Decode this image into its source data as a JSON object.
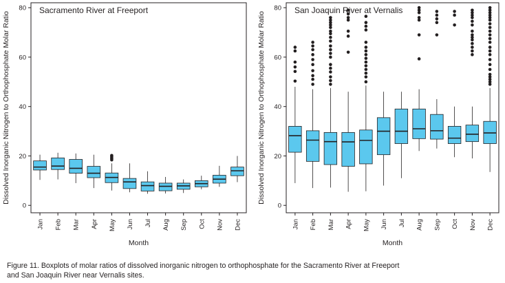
{
  "chart_data": [
    {
      "type": "boxplot",
      "title": "Sacramento River at Freeport",
      "xlabel": "Month",
      "ylabel": "Dissolved Inorganic Nitrogen to Orthophosphate Molar Ratio",
      "ylim": [
        -3,
        82
      ],
      "yticks": [
        "0",
        "20",
        "40",
        "60",
        "80"
      ],
      "grid": false,
      "box_color": "#5bc8ee",
      "categories": [
        "Jan",
        "Feb",
        "Mar",
        "Apr",
        "May",
        "Jun",
        "Jul",
        "Aug",
        "Sep",
        "Oct",
        "Nov",
        "Dec"
      ],
      "boxes": [
        {
          "low": 10.3,
          "q1": 14.3,
          "median": 15.5,
          "q3": 18.0,
          "high": 20.5,
          "outliers": []
        },
        {
          "low": 10.5,
          "q1": 14.5,
          "median": 15.9,
          "q3": 19.2,
          "high": 21.3,
          "outliers": []
        },
        {
          "low": 9.0,
          "q1": 13.0,
          "median": 15.0,
          "q3": 18.6,
          "high": 21.0,
          "outliers": []
        },
        {
          "low": 7.0,
          "q1": 11.2,
          "median": 13.0,
          "q3": 15.8,
          "high": 20.5,
          "outliers": []
        },
        {
          "low": 6.0,
          "q1": 9.2,
          "median": 11.3,
          "q3": 13.1,
          "high": 17.0,
          "outliers": [
            18.4,
            18.9,
            19.3,
            19.8,
            20.2
          ]
        },
        {
          "low": 5.3,
          "q1": 6.8,
          "median": 9.5,
          "q3": 10.9,
          "high": 17.0,
          "outliers": []
        },
        {
          "low": 4.7,
          "q1": 5.8,
          "median": 8.0,
          "q3": 9.5,
          "high": 13.8,
          "outliers": []
        },
        {
          "low": 4.8,
          "q1": 5.9,
          "median": 7.7,
          "q3": 9.0,
          "high": 11.5,
          "outliers": []
        },
        {
          "low": 5.0,
          "q1": 6.5,
          "median": 7.9,
          "q3": 9.0,
          "high": 10.5,
          "outliers": []
        },
        {
          "low": 6.5,
          "q1": 7.5,
          "median": 8.8,
          "q3": 10.0,
          "high": 12.0,
          "outliers": []
        },
        {
          "low": 7.5,
          "q1": 9.0,
          "median": 10.6,
          "q3": 12.2,
          "high": 16.0,
          "outliers": []
        },
        {
          "low": 9.4,
          "q1": 12.0,
          "median": 14.0,
          "q3": 15.5,
          "high": 20.0,
          "outliers": []
        }
      ]
    },
    {
      "type": "boxplot",
      "title": "San Joaquin River at Vernalis",
      "xlabel": "Month",
      "ylabel": "Dissolved Inorganic Nitrogen to Orthophosphate Molar Ratio",
      "ylim": [
        -3,
        82
      ],
      "yticks": [
        "0",
        "20",
        "40",
        "60",
        "80"
      ],
      "grid": false,
      "box_color": "#5bc8ee",
      "categories": [
        "Jan",
        "Feb",
        "Mar",
        "Apr",
        "May",
        "Jun",
        "Jul",
        "Aug",
        "Sep",
        "Oct",
        "Nov",
        "Dec"
      ],
      "boxes": [
        {
          "low": 9.0,
          "q1": 21.5,
          "median": 28.2,
          "q3": 32.0,
          "high": 48.0,
          "outliers": [
            50.3,
            54.2,
            56.0,
            58.0,
            62.5,
            64.0
          ]
        },
        {
          "low": 7.0,
          "q1": 17.8,
          "median": 26.4,
          "q3": 30.2,
          "high": 47.0,
          "outliers": [
            49.0,
            51.0,
            52.5,
            54.5,
            57.0,
            59.0,
            61.0,
            63.0,
            64.5,
            66.0
          ]
        },
        {
          "low": 7.2,
          "q1": 16.5,
          "median": 25.8,
          "q3": 29.5,
          "high": 47.5,
          "outliers": [
            49.0,
            50.5,
            52.0,
            54.0,
            55.5,
            57.0,
            60.0,
            61.5,
            63.0,
            64.5,
            66.5,
            68.0,
            69.5,
            70.5,
            72.0,
            73.0,
            74.0,
            75.0,
            76.0
          ]
        },
        {
          "low": 5.5,
          "q1": 15.8,
          "median": 25.7,
          "q3": 29.5,
          "high": 46.0,
          "outliers": [
            62.0,
            68.5,
            70.5,
            75.0,
            76.0,
            77.5,
            79.0
          ]
        },
        {
          "low": 5.7,
          "q1": 16.8,
          "median": 26.3,
          "q3": 30.5,
          "high": 48.5,
          "outliers": [
            50.0,
            52.0,
            53.5,
            55.0,
            56.5,
            58.0,
            59.5,
            61.0,
            62.5,
            64.0,
            66.0,
            71.0,
            72.5,
            74.0,
            76.5
          ]
        },
        {
          "low": 8.0,
          "q1": 20.5,
          "median": 30.0,
          "q3": 35.5,
          "high": 46.0,
          "outliers": []
        },
        {
          "low": 11.0,
          "q1": 25.0,
          "median": 30.0,
          "q3": 39.0,
          "high": 46.0,
          "outliers": []
        },
        {
          "low": 22.0,
          "q1": 27.0,
          "median": 31.0,
          "q3": 39.0,
          "high": 47.0,
          "outliers": [
            59.3,
            69.0,
            75.0,
            76.0,
            78.0,
            79.0,
            80.0
          ]
        },
        {
          "low": 23.0,
          "q1": 26.8,
          "median": 30.2,
          "q3": 36.8,
          "high": 43.0,
          "outliers": [
            69.0,
            74.0,
            75.5,
            77.0,
            78.5
          ]
        },
        {
          "low": 19.5,
          "q1": 25.0,
          "median": 27.2,
          "q3": 32.0,
          "high": 40.0,
          "outliers": [
            73.0,
            77.0,
            78.5
          ]
        },
        {
          "low": 19.0,
          "q1": 25.8,
          "median": 28.8,
          "q3": 32.5,
          "high": 40.0,
          "outliers": [
            61.0,
            62.5,
            64.0,
            65.5,
            67.0,
            68.0,
            69.0,
            70.5,
            73.0,
            74.5,
            76.0,
            77.0,
            78.0,
            79.0
          ]
        },
        {
          "low": 13.5,
          "q1": 25.0,
          "median": 29.3,
          "q3": 34.0,
          "high": 47.5,
          "outliers": [
            49.0,
            50.0,
            51.0,
            52.0,
            53.0,
            55.0,
            57.0,
            59.0,
            61.0,
            62.5,
            64.0,
            66.0,
            67.5,
            69.0,
            70.5,
            72.0,
            73.5,
            75.0,
            76.0,
            77.0,
            78.0,
            79.0,
            80.0
          ]
        }
      ]
    }
  ],
  "caption": {
    "line1": "Figure 11.  Boxplots of molar ratios of dissolved inorganic nitrogen to orthophosphate for the Sacramento River at Freeport",
    "line2": "and San Joaquin River near Vernalis sites."
  }
}
